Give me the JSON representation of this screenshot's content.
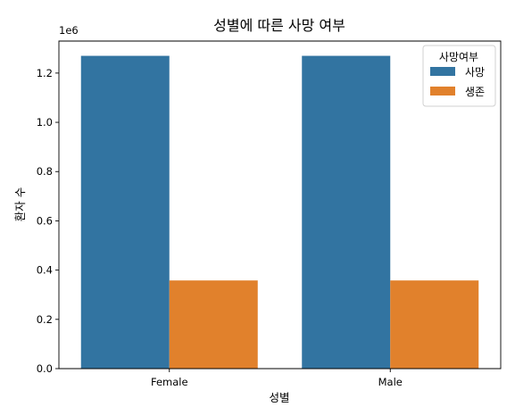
{
  "chart_data": {
    "type": "bar",
    "title": "성별에 따른 사망 여부",
    "xlabel": "성별",
    "ylabel": "환자 수",
    "categories": [
      "Female",
      "Male"
    ],
    "series": [
      {
        "name": "사망",
        "color": "#3274a1",
        "values": [
          1270000,
          1270000
        ]
      },
      {
        "name": "생존",
        "color": "#e1812c",
        "values": [
          358000,
          358000
        ]
      }
    ],
    "ylim": [
      0,
      1330000
    ],
    "yticks": [
      0,
      200000,
      400000,
      600000,
      800000,
      1000000,
      1200000
    ],
    "ytick_labels": [
      "0.0",
      "0.2",
      "0.4",
      "0.6",
      "0.8",
      "1.0",
      "1.2"
    ],
    "y_offset_label": "1e6",
    "legend": {
      "title": "사망여부",
      "placement": "top-right"
    },
    "grid": false
  }
}
